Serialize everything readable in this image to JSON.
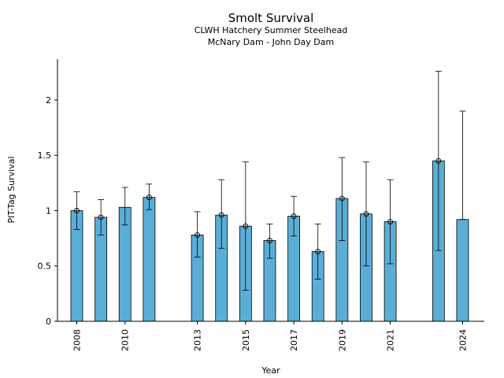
{
  "chart_data": {
    "type": "bar",
    "title": "Smolt Survival",
    "subtitle_lines": [
      "CLWH Hatchery Summer Steelhead",
      "McNary Dam - John Day Dam"
    ],
    "xlabel": "Year",
    "ylabel": "PIT-Tag Survival",
    "ylim": [
      0,
      2.37
    ],
    "xlim": [
      2007.2,
      2024.9
    ],
    "yticks": [
      "0",
      "0.5",
      "1",
      "1.5",
      "2"
    ],
    "xticks": [
      "2008",
      "2010",
      "2013",
      "2015",
      "2017",
      "2019",
      "2021",
      "2024"
    ],
    "bar_color": "#5aaed6",
    "grid": false,
    "bars": [
      {
        "year": 2008,
        "value": 1.0,
        "lower": 0.83,
        "upper": 1.17,
        "marker": true
      },
      {
        "year": 2009,
        "value": 0.94,
        "lower": 0.78,
        "upper": 1.1,
        "marker": true
      },
      {
        "year": 2010,
        "value": 1.03,
        "lower": 0.87,
        "upper": 1.21,
        "marker": false
      },
      {
        "year": 2011,
        "value": 1.12,
        "lower": 1.01,
        "upper": 1.24,
        "marker": true
      },
      {
        "year": 2013,
        "value": 0.78,
        "lower": 0.58,
        "upper": 0.99,
        "marker": true
      },
      {
        "year": 2014,
        "value": 0.96,
        "lower": 0.66,
        "upper": 1.28,
        "marker": true
      },
      {
        "year": 2015,
        "value": 0.86,
        "lower": 0.28,
        "upper": 1.44,
        "marker": true
      },
      {
        "year": 2016,
        "value": 0.73,
        "lower": 0.57,
        "upper": 0.88,
        "marker": true
      },
      {
        "year": 2017,
        "value": 0.95,
        "lower": 0.77,
        "upper": 1.13,
        "marker": true
      },
      {
        "year": 2018,
        "value": 0.63,
        "lower": 0.38,
        "upper": 0.88,
        "marker": true
      },
      {
        "year": 2019,
        "value": 1.11,
        "lower": 0.73,
        "upper": 1.48,
        "marker": true
      },
      {
        "year": 2020,
        "value": 0.97,
        "lower": 0.5,
        "upper": 1.44,
        "marker": true
      },
      {
        "year": 2021,
        "value": 0.9,
        "lower": 0.52,
        "upper": 1.28,
        "marker": true
      },
      {
        "year": 2023,
        "value": 1.45,
        "lower": 0.64,
        "upper": 2.26,
        "marker": true
      },
      {
        "year": 2024,
        "value": 0.92,
        "lower": 0.92,
        "upper": 1.9,
        "marker": false
      }
    ]
  }
}
